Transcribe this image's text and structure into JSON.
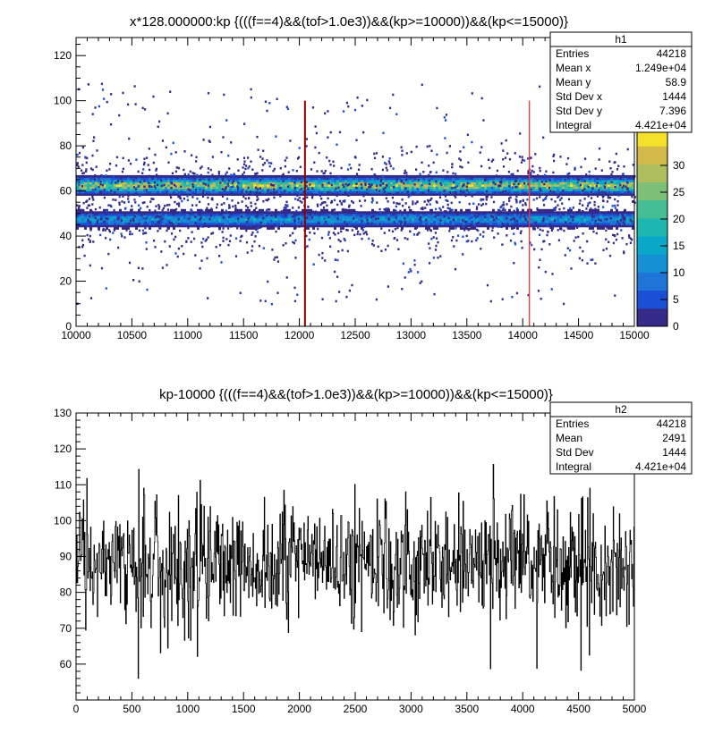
{
  "colors": {
    "frame": "#000000",
    "stats_bg": "#ffffff",
    "marker_dark": "#8b0000",
    "marker_red": "#ff3030",
    "h2_line": "#000000"
  },
  "h1": {
    "title": "x*128.000000:kp {(((f==4)&&(tof>1.0e3))&&(kp>=10000))&&(kp<=15000)}",
    "xlim": [
      10000,
      15000
    ],
    "ylim": [
      0,
      128
    ],
    "xticks": [
      "10000",
      "10500",
      "11000",
      "11500",
      "12000",
      "12500",
      "13000",
      "13500",
      "14000",
      "14500",
      "15000"
    ],
    "xtick_values": [
      10000,
      10500,
      11000,
      11500,
      12000,
      12500,
      13000,
      13500,
      14000,
      14500,
      15000
    ],
    "yticks": [
      "0",
      "20",
      "40",
      "60",
      "80",
      "100",
      "120"
    ],
    "ytick_values": [
      0,
      20,
      40,
      60,
      80,
      100,
      120
    ],
    "palette": [
      "#352a87",
      "#1a4fd6",
      "#1f74d8",
      "#1590d4",
      "#0aa8c8",
      "#1eb7b0",
      "#45be95",
      "#7dbf77",
      "#aebd5d",
      "#d2b94a",
      "#f5e12a"
    ],
    "colorbar": {
      "range": [
        0,
        37
      ],
      "ticks": [
        "0",
        "5",
        "10",
        "15",
        "20",
        "25",
        "30"
      ],
      "tick_values": [
        0,
        5,
        10,
        15,
        20,
        25,
        30
      ]
    },
    "bands": [
      {
        "y": 62,
        "halfwidth": 2.5,
        "peak": 30
      },
      {
        "y": 47,
        "halfwidth": 2.2,
        "peak": 14
      }
    ],
    "markers": [
      {
        "x": 12050,
        "y_top": 100,
        "color": "#8b0000"
      },
      {
        "x": 14060,
        "y_top": 100,
        "color": "#ff3030"
      }
    ],
    "stats": {
      "name": "h1",
      "rows": [
        {
          "label": "Entries",
          "value": "44218"
        },
        {
          "label": "Mean x",
          "value": "1.249e+04"
        },
        {
          "label": "Mean y",
          "value": "58.9"
        },
        {
          "label": "Std Dev x",
          "value": "1444"
        },
        {
          "label": "Std Dev y",
          "value": "7.396"
        },
        {
          "label": "Integral",
          "value": "4.421e+04"
        }
      ]
    }
  },
  "h2": {
    "title": "kp-10000 {(((f==4)&&(tof>1.0e3))&&(kp>=10000))&&(kp<=15000)}",
    "xlim": [
      0,
      5000
    ],
    "ylim": [
      50,
      130
    ],
    "xticks": [
      "0",
      "500",
      "1000",
      "1500",
      "2000",
      "2500",
      "3000",
      "3500",
      "4000",
      "4500",
      "5000"
    ],
    "xtick_values": [
      0,
      500,
      1000,
      1500,
      2000,
      2500,
      3000,
      3500,
      4000,
      4500,
      5000
    ],
    "yticks": [
      "60",
      "70",
      "80",
      "90",
      "100",
      "110",
      "120",
      "130"
    ],
    "ytick_values": [
      60,
      70,
      80,
      90,
      100,
      110,
      120,
      130
    ],
    "mean_level": 88,
    "stats": {
      "name": "h2",
      "rows": [
        {
          "label": "Entries",
          "value": "44218"
        },
        {
          "label": "Mean",
          "value": "2491"
        },
        {
          "label": "Std Dev",
          "value": "1444"
        },
        {
          "label": "Integral",
          "value": "4.421e+04"
        }
      ]
    }
  },
  "chart_data": [
    {
      "type": "heatmap",
      "title": "x*128.000000:kp {(((f==4)&&(tof>1.0e3))&&(kp>=10000))&&(kp<=15000)}",
      "xlabel": "",
      "ylabel": "",
      "xlim": [
        10000,
        15000
      ],
      "ylim": [
        0,
        128
      ],
      "bands_y": [
        62,
        47
      ],
      "colorbar_range": [
        0,
        37
      ],
      "markers_x": [
        12050,
        14060
      ],
      "grid": false,
      "legend": "top-right stats box"
    },
    {
      "type": "line",
      "title": "kp-10000 {(((f==4)&&(tof>1.0e3))&&(kp>=10000))&&(kp<=15000)}",
      "xlabel": "",
      "ylabel": "",
      "xlim": [
        0,
        5000
      ],
      "ylim": [
        50,
        130
      ],
      "typical_range": [
        75,
        105
      ],
      "mean_level": 88,
      "grid": false,
      "legend": "top-right stats box"
    }
  ]
}
